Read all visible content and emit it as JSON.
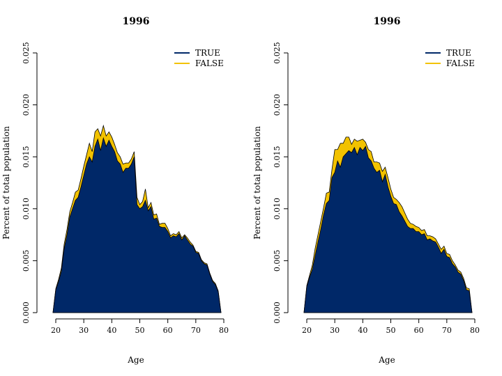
{
  "chart_data": [
    {
      "type": "area",
      "stacked": true,
      "title": "1996",
      "xlabel": "Age",
      "ylabel": "Percent of total population",
      "xlim": [
        18,
        80
      ],
      "ylim": [
        0,
        0.025
      ],
      "xticks": [
        "20",
        "30",
        "40",
        "50",
        "60",
        "70",
        "80"
      ],
      "yticks": [
        "0.000",
        "0.005",
        "0.010",
        "0.015",
        "0.020",
        "0.025"
      ],
      "legend": "top-right",
      "x": [
        19,
        20,
        21,
        22,
        23,
        24,
        25,
        26,
        27,
        28,
        29,
        30,
        31,
        32,
        33,
        34,
        35,
        36,
        37,
        38,
        39,
        40,
        41,
        42,
        43,
        44,
        45,
        46,
        47,
        48,
        49,
        50,
        51,
        52,
        53,
        54,
        55,
        56,
        57,
        58,
        59,
        60,
        61,
        62,
        63,
        64,
        65,
        66,
        67,
        68,
        69,
        70,
        71,
        72,
        73,
        74,
        75,
        76,
        77,
        78,
        79
      ],
      "series": [
        {
          "name": "TRUE",
          "color": "#002868",
          "values": [
            0.0,
            0.0022,
            0.003,
            0.004,
            0.0062,
            0.0075,
            0.0092,
            0.01,
            0.0108,
            0.0111,
            0.0121,
            0.0132,
            0.0143,
            0.015,
            0.0145,
            0.016,
            0.0167,
            0.0156,
            0.0168,
            0.016,
            0.0166,
            0.016,
            0.0155,
            0.0146,
            0.0143,
            0.0135,
            0.0139,
            0.0139,
            0.0143,
            0.015,
            0.0104,
            0.01,
            0.0102,
            0.0108,
            0.0098,
            0.0102,
            0.009,
            0.0091,
            0.0083,
            0.0082,
            0.0082,
            0.0078,
            0.0072,
            0.0074,
            0.0073,
            0.0076,
            0.007,
            0.0074,
            0.007,
            0.0066,
            0.0064,
            0.0058,
            0.0057,
            0.005,
            0.0047,
            0.0046,
            0.0037,
            0.003,
            0.0027,
            0.002,
            0.0
          ]
        },
        {
          "name": "FALSE",
          "color": "#f2c200",
          "values": [
            0.0,
            0.0001,
            0.0002,
            0.0003,
            0.0004,
            0.0005,
            0.0005,
            0.0006,
            0.0008,
            0.0007,
            0.0008,
            0.0009,
            0.0009,
            0.0013,
            0.001,
            0.0014,
            0.001,
            0.0014,
            0.0012,
            0.001,
            0.0008,
            0.0009,
            0.0007,
            0.0008,
            0.0007,
            0.0008,
            0.0005,
            0.0005,
            0.0005,
            0.0005,
            0.0007,
            0.0004,
            0.0005,
            0.0011,
            0.0003,
            0.0004,
            0.0004,
            0.0004,
            0.0002,
            0.0004,
            0.0004,
            0.0003,
            0.0002,
            0.0002,
            0.0002,
            0.0002,
            0.0002,
            0.0001,
            0.0002,
            0.0002,
            0.0001,
            0.0001,
            0.0001,
            0.0001,
            0.0001,
            0.0001,
            0.0001,
            0.0001,
            0.0001,
            0.0001,
            0.0
          ]
        }
      ]
    },
    {
      "type": "area",
      "stacked": true,
      "title": "1996",
      "xlabel": "Age",
      "ylabel": "Percent of total population",
      "xlim": [
        18,
        80
      ],
      "ylim": [
        0,
        0.025
      ],
      "xticks": [
        "20",
        "30",
        "40",
        "50",
        "60",
        "70",
        "80"
      ],
      "yticks": [
        "0.000",
        "0.005",
        "0.010",
        "0.015",
        "0.020",
        "0.025"
      ],
      "legend": "top-right",
      "x": [
        19,
        20,
        21,
        22,
        23,
        24,
        25,
        26,
        27,
        28,
        29,
        30,
        31,
        32,
        33,
        34,
        35,
        36,
        37,
        38,
        39,
        40,
        41,
        42,
        43,
        44,
        45,
        46,
        47,
        48,
        49,
        50,
        51,
        52,
        53,
        54,
        55,
        56,
        57,
        58,
        59,
        60,
        61,
        62,
        63,
        64,
        65,
        66,
        67,
        68,
        69,
        70,
        71,
        72,
        73,
        74,
        75,
        76,
        77,
        78,
        79
      ],
      "series": [
        {
          "name": "TRUE",
          "color": "#002868",
          "values": [
            0.0,
            0.0025,
            0.0034,
            0.0042,
            0.0055,
            0.0068,
            0.008,
            0.0094,
            0.0105,
            0.0108,
            0.013,
            0.0135,
            0.0146,
            0.014,
            0.015,
            0.0153,
            0.0156,
            0.0154,
            0.0159,
            0.0152,
            0.0159,
            0.0156,
            0.016,
            0.0149,
            0.0146,
            0.0139,
            0.0135,
            0.0137,
            0.0126,
            0.0133,
            0.0121,
            0.0112,
            0.0105,
            0.0104,
            0.0097,
            0.0093,
            0.0088,
            0.0083,
            0.0081,
            0.0081,
            0.0078,
            0.0078,
            0.0075,
            0.0076,
            0.007,
            0.0071,
            0.0069,
            0.0068,
            0.0063,
            0.0057,
            0.0061,
            0.0054,
            0.0053,
            0.0047,
            0.0044,
            0.0039,
            0.0037,
            0.0031,
            0.0022,
            0.0021,
            0.0
          ]
        },
        {
          "name": "FALSE",
          "color": "#f2c200",
          "values": [
            0.0,
            0.0001,
            0.0002,
            0.0004,
            0.0007,
            0.0007,
            0.0008,
            0.0007,
            0.001,
            0.0008,
            0.0008,
            0.0022,
            0.0011,
            0.0023,
            0.0013,
            0.0016,
            0.0013,
            0.0008,
            0.0008,
            0.0013,
            0.0007,
            0.0011,
            0.0004,
            0.0008,
            0.0009,
            0.0006,
            0.001,
            0.0007,
            0.001,
            0.0007,
            0.0009,
            0.0007,
            0.0006,
            0.0005,
            0.0009,
            0.0009,
            0.0008,
            0.0007,
            0.0005,
            0.0004,
            0.0005,
            0.0004,
            0.0004,
            0.0004,
            0.0004,
            0.0003,
            0.0004,
            0.0003,
            0.0003,
            0.0004,
            0.0003,
            0.0003,
            0.0003,
            0.0003,
            0.0002,
            0.0002,
            0.0002,
            0.0002,
            0.0002,
            0.0002,
            0.0
          ]
        }
      ]
    }
  ]
}
